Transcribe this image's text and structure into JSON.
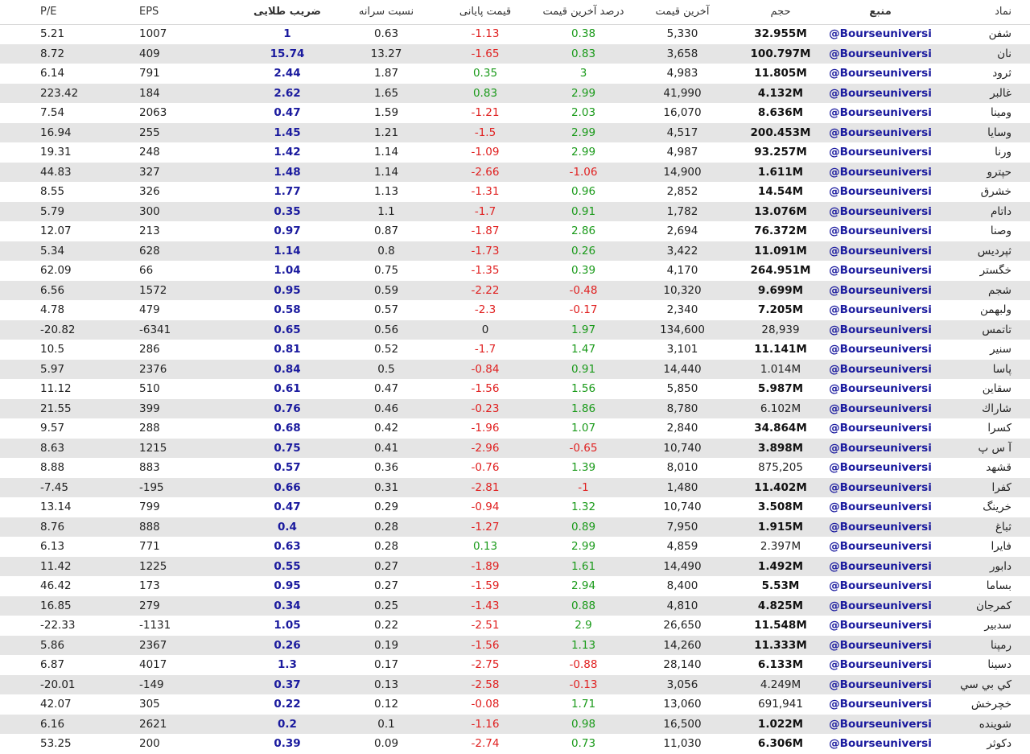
{
  "table": {
    "headers": [
      "P/E",
      "EPS",
      "ضریب طلایی",
      "نسبت سرانه",
      "قیمت پایانی",
      "درصد آخرین قیمت",
      "آخرین قیمت",
      "حجم",
      "منبع",
      "نماد"
    ],
    "rows": [
      [
        "5.21",
        "1007",
        "1",
        "0.63",
        "-1.13",
        "0.38",
        "5,330",
        "32.955M",
        "@Bourseuniversi",
        "شفن"
      ],
      [
        "8.72",
        "409",
        "15.74",
        "13.27",
        "-1.65",
        "0.83",
        "3,658",
        "100.797M",
        "@Bourseuniversi",
        "نان"
      ],
      [
        "6.14",
        "791",
        "2.44",
        "1.87",
        "0.35",
        "3",
        "4,983",
        "11.805M",
        "@Bourseuniversi",
        "ثرود"
      ],
      [
        "223.42",
        "184",
        "2.62",
        "1.65",
        "0.83",
        "2.99",
        "41,990",
        "4.132M",
        "@Bourseuniversi",
        "غالبر"
      ],
      [
        "7.54",
        "2063",
        "0.47",
        "1.59",
        "-1.21",
        "2.03",
        "16,070",
        "8.636M",
        "@Bourseuniversi",
        "ومینا"
      ],
      [
        "16.94",
        "255",
        "1.45",
        "1.21",
        "-1.5",
        "2.99",
        "4,517",
        "200.453M",
        "@Bourseuniversi",
        "وسایا"
      ],
      [
        "19.31",
        "248",
        "1.42",
        "1.14",
        "-1.09",
        "2.99",
        "4,987",
        "93.257M",
        "@Bourseuniversi",
        "ورنا"
      ],
      [
        "44.83",
        "327",
        "1.48",
        "1.14",
        "-2.66",
        "-1.06",
        "14,900",
        "1.611M",
        "@Bourseuniversi",
        "حپترو"
      ],
      [
        "8.55",
        "326",
        "1.77",
        "1.13",
        "-1.31",
        "0.96",
        "2,852",
        "14.54M",
        "@Bourseuniversi",
        "خشرق"
      ],
      [
        "5.79",
        "300",
        "0.35",
        "1.1",
        "-1.7",
        "0.91",
        "1,782",
        "13.076M",
        "@Bourseuniversi",
        "داتام"
      ],
      [
        "12.07",
        "213",
        "0.97",
        "0.87",
        "-1.87",
        "2.86",
        "2,694",
        "76.372M",
        "@Bourseuniversi",
        "وصنا"
      ],
      [
        "5.34",
        "628",
        "1.14",
        "0.8",
        "-1.73",
        "0.26",
        "3,422",
        "11.091M",
        "@Bourseuniversi",
        "ثپردیس"
      ],
      [
        "62.09",
        "66",
        "1.04",
        "0.75",
        "-1.35",
        "0.39",
        "4,170",
        "264.951M",
        "@Bourseuniversi",
        "خگستر"
      ],
      [
        "6.56",
        "1572",
        "0.95",
        "0.59",
        "-2.22",
        "-0.48",
        "10,320",
        "9.699M",
        "@Bourseuniversi",
        "شجم"
      ],
      [
        "4.78",
        "479",
        "0.58",
        "0.57",
        "-2.3",
        "-0.17",
        "2,340",
        "7.205M",
        "@Bourseuniversi",
        "ولبهمن"
      ],
      [
        "-20.82",
        "-6341",
        "0.65",
        "0.56",
        "0",
        "1.97",
        "134,600",
        "28,939",
        "@Bourseuniversi",
        "تاتمس"
      ],
      [
        "10.5",
        "286",
        "0.81",
        "0.52",
        "-1.7",
        "1.47",
        "3,101",
        "11.141M",
        "@Bourseuniversi",
        "سنیر"
      ],
      [
        "5.97",
        "2376",
        "0.84",
        "0.5",
        "-0.84",
        "0.91",
        "14,440",
        "1.014M",
        "@Bourseuniversi",
        "پاسا"
      ],
      [
        "11.12",
        "510",
        "0.61",
        "0.47",
        "-1.56",
        "1.56",
        "5,850",
        "5.987M",
        "@Bourseuniversi",
        "سقاین"
      ],
      [
        "21.55",
        "399",
        "0.76",
        "0.46",
        "-0.23",
        "1.86",
        "8,780",
        "6.102M",
        "@Bourseuniversi",
        "شاراك"
      ],
      [
        "9.57",
        "288",
        "0.68",
        "0.42",
        "-1.96",
        "1.07",
        "2,840",
        "34.864M",
        "@Bourseuniversi",
        "کسرا"
      ],
      [
        "8.63",
        "1215",
        "0.75",
        "0.41",
        "-2.96",
        "-0.65",
        "10,740",
        "3.898M",
        "@Bourseuniversi",
        "آ س پ"
      ],
      [
        "8.88",
        "883",
        "0.57",
        "0.36",
        "-0.76",
        "1.39",
        "8,010",
        "875,205",
        "@Bourseuniversi",
        "قشهد"
      ],
      [
        "-7.45",
        "-195",
        "0.66",
        "0.31",
        "-2.81",
        "-1",
        "1,480",
        "11.402M",
        "@Bourseuniversi",
        "کفرا"
      ],
      [
        "13.14",
        "799",
        "0.47",
        "0.29",
        "-0.94",
        "1.32",
        "10,740",
        "3.508M",
        "@Bourseuniversi",
        "خرینگ"
      ],
      [
        "8.76",
        "888",
        "0.4",
        "0.28",
        "-1.27",
        "0.89",
        "7,950",
        "1.915M",
        "@Bourseuniversi",
        "ثباغ"
      ],
      [
        "6.13",
        "771",
        "0.63",
        "0.28",
        "0.13",
        "2.99",
        "4,859",
        "2.397M",
        "@Bourseuniversi",
        "فایرا"
      ],
      [
        "11.42",
        "1225",
        "0.55",
        "0.27",
        "-1.89",
        "1.61",
        "14,490",
        "1.492M",
        "@Bourseuniversi",
        "دابور"
      ],
      [
        "46.42",
        "173",
        "0.95",
        "0.27",
        "-1.59",
        "2.94",
        "8,400",
        "5.53M",
        "@Bourseuniversi",
        "بساما"
      ],
      [
        "16.85",
        "279",
        "0.34",
        "0.25",
        "-1.43",
        "0.88",
        "4,810",
        "4.825M",
        "@Bourseuniversi",
        "کمرجان"
      ],
      [
        "-22.33",
        "-1131",
        "1.05",
        "0.22",
        "-2.51",
        "2.9",
        "26,650",
        "11.548M",
        "@Bourseuniversi",
        "سدبیر"
      ],
      [
        "5.86",
        "2367",
        "0.26",
        "0.19",
        "-1.56",
        "1.13",
        "14,260",
        "11.333M",
        "@Bourseuniversi",
        "رمپنا"
      ],
      [
        "6.87",
        "4017",
        "1.3",
        "0.17",
        "-2.75",
        "-0.88",
        "28,140",
        "6.133M",
        "@Bourseuniversi",
        "دسینا"
      ],
      [
        "-20.01",
        "-149",
        "0.37",
        "0.13",
        "-2.58",
        "-0.13",
        "3,056",
        "4.249M",
        "@Bourseuniversi",
        "کي بي سي"
      ],
      [
        "42.07",
        "305",
        "0.22",
        "0.12",
        "-0.08",
        "1.71",
        "13,060",
        "691,941",
        "@Bourseuniversi",
        "خچرخش"
      ],
      [
        "6.16",
        "2621",
        "0.2",
        "0.1",
        "-1.16",
        "0.98",
        "16,500",
        "1.022M",
        "@Bourseuniversi",
        "شوینده"
      ],
      [
        "53.25",
        "200",
        "0.39",
        "0.09",
        "-2.74",
        "0.73",
        "11,030",
        "6.306M",
        "@Bourseuniversi",
        "دکوثر"
      ]
    ],
    "volume_bold": [
      true,
      true,
      true,
      true,
      true,
      true,
      true,
      true,
      true,
      true,
      true,
      true,
      true,
      true,
      true,
      false,
      true,
      false,
      true,
      false,
      true,
      true,
      false,
      true,
      true,
      true,
      false,
      true,
      true,
      true,
      true,
      true,
      true,
      false,
      false,
      true,
      true
    ]
  }
}
